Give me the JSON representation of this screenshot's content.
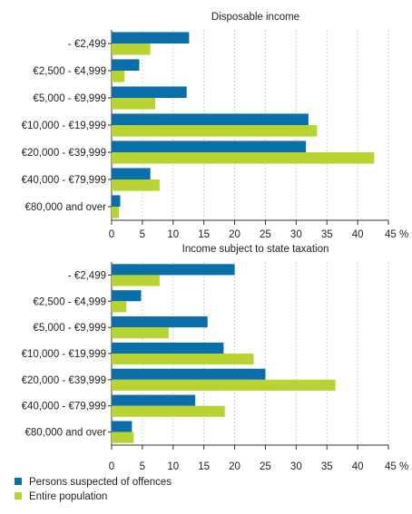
{
  "chart_data": [
    {
      "type": "bar",
      "orientation": "horizontal",
      "title": "Disposable income",
      "categories": [
        "- €2,499",
        "€2,500 - €4,999",
        "€5,000 - €9,999",
        "€10,000 - €19,999",
        "€20,000 - €39,999",
        "€40,000 - €79,999",
        "€80,000 and over"
      ],
      "series": [
        {
          "name": "Persons suspected of offences",
          "color": "#0a6ea8",
          "values": [
            12.6,
            4.5,
            12.2,
            32.0,
            31.6,
            6.3,
            1.4
          ]
        },
        {
          "name": "Entire population",
          "color": "#b8d433",
          "values": [
            6.3,
            2.1,
            7.1,
            33.4,
            42.7,
            7.8,
            1.2
          ]
        }
      ],
      "xlim": [
        0,
        45
      ],
      "xticks": [
        "0",
        "5",
        "10",
        "15",
        "20",
        "25",
        "30",
        "35",
        "40",
        "45 %"
      ],
      "grid": true
    },
    {
      "type": "bar",
      "orientation": "horizontal",
      "title": "Income subject to state taxation",
      "categories": [
        "- €2,499",
        "€2,500 - €4,999",
        "€5,000 - €9,999",
        "€10,000 - €19,999",
        "€20,000 - €39,999",
        "€40,000 - €79,999",
        "€80,000 and over"
      ],
      "series": [
        {
          "name": "Persons suspected of offences",
          "color": "#0a6ea8",
          "values": [
            20.0,
            4.8,
            15.6,
            18.2,
            25.0,
            13.6,
            3.3
          ]
        },
        {
          "name": "Entire population",
          "color": "#b8d433",
          "values": [
            7.8,
            2.4,
            9.3,
            23.1,
            36.4,
            18.4,
            3.6
          ]
        }
      ],
      "xlim": [
        0,
        45
      ],
      "xticks": [
        "0",
        "5",
        "10",
        "15",
        "20",
        "25",
        "30",
        "35",
        "40",
        "45 %"
      ],
      "grid": true
    }
  ],
  "legend": {
    "placement": "bottom-left",
    "items": [
      {
        "label": "Persons suspected of offences",
        "color": "#0a6ea8"
      },
      {
        "label": "Entire population",
        "color": "#b8d433"
      }
    ]
  }
}
